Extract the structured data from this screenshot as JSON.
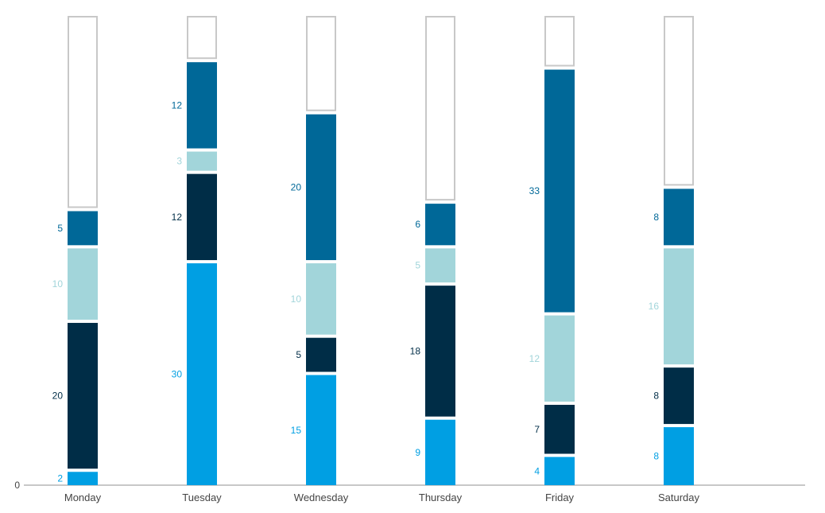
{
  "chart_data": {
    "type": "bar",
    "stacked": true,
    "categories": [
      "Monday",
      "Tuesday",
      "Wednesday",
      "Thursday",
      "Friday",
      "Saturday"
    ],
    "series": [
      {
        "values": [
          2,
          30,
          15,
          9,
          4,
          8
        ],
        "color": "#009fe3"
      },
      {
        "values": [
          20,
          12,
          5,
          18,
          7,
          8
        ],
        "color": "#002d47"
      },
      {
        "values": [
          10,
          3,
          10,
          5,
          12,
          16
        ],
        "color": "#a2d5da"
      },
      {
        "values": [
          5,
          12,
          20,
          6,
          33,
          8
        ],
        "color": "#006898"
      }
    ],
    "capacity": 63,
    "capacity_color": "#c8c8c8",
    "y_zero_label": "0",
    "ylim": [
      0,
      63
    ],
    "grid": false,
    "legend": "none"
  }
}
